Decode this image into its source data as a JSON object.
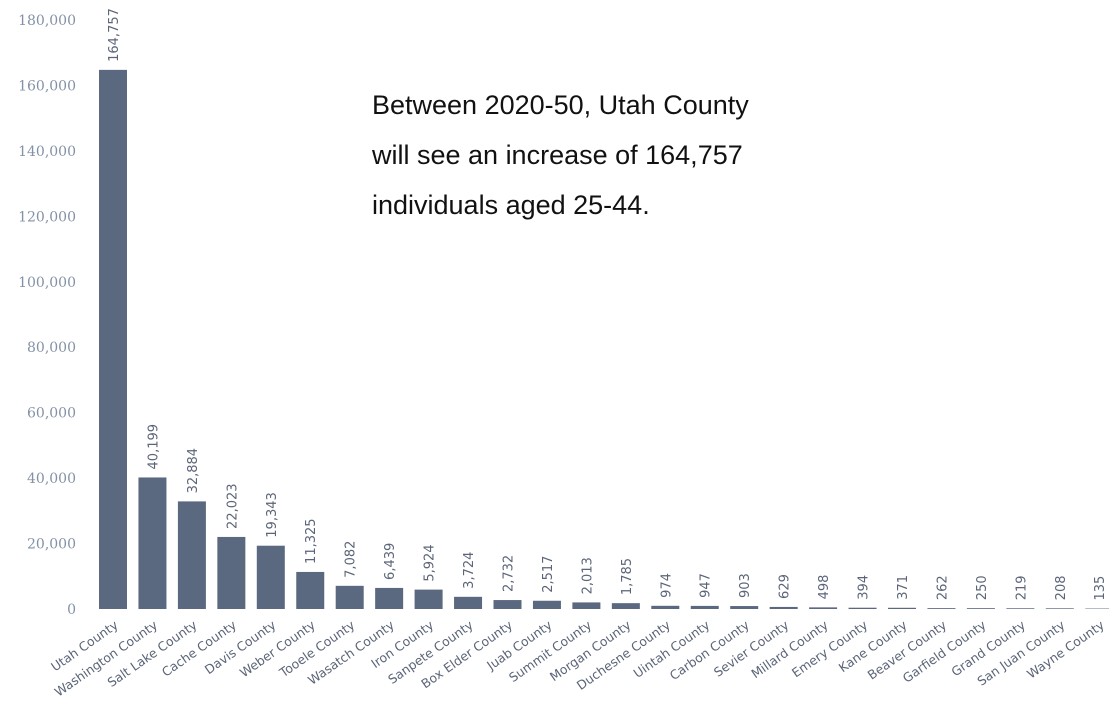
{
  "chart_data": {
    "type": "bar",
    "annotation": [
      "Between 2020-50, Utah County",
      "will see an increase of 164,757",
      "individuals aged 25-44."
    ],
    "categories": [
      "Utah County",
      "Washington County",
      "Salt Lake County",
      "Cache County",
      "Davis County",
      "Weber County",
      "Tooele County",
      "Wasatch County",
      "Iron County",
      "Sanpete County",
      "Box Elder County",
      "Juab County",
      "Summit County",
      "Morgan County",
      "Duchesne County",
      "Uintah County",
      "Carbon County",
      "Sevier County",
      "Millard County",
      "Emery County",
      "Kane County",
      "Beaver County",
      "Garfield County",
      "Grand County",
      "San Juan County",
      "Wayne County"
    ],
    "values": [
      164757,
      40199,
      32884,
      22023,
      19343,
      11325,
      7082,
      6439,
      5924,
      3724,
      2732,
      2517,
      2013,
      1785,
      974,
      947,
      903,
      629,
      498,
      394,
      371,
      262,
      250,
      219,
      208,
      135
    ],
    "value_labels": [
      "164,757",
      "40,199",
      "32,884",
      "22,023",
      "19,343",
      "11,325",
      "7,082",
      "6,439",
      "5,924",
      "3,724",
      "2,732",
      "2,517",
      "2,013",
      "1,785",
      "974",
      "947",
      "903",
      "629",
      "498",
      "394",
      "371",
      "262",
      "250",
      "219",
      "208",
      "135"
    ],
    "color": "#5a6880",
    "ylim": [
      0,
      180000
    ],
    "yticks": [
      0,
      {
        "value": 20000,
        "label": "20,000"
      },
      {
        "value": 40000,
        "label": "40,000"
      },
      {
        "value": 60000,
        "label": "60,000"
      },
      {
        "value": 80000,
        "label": "80,000"
      },
      {
        "value": 100000,
        "label": "100,000"
      },
      {
        "value": 120000,
        "label": "120,000"
      },
      {
        "value": 140000,
        "label": "140,000"
      },
      {
        "value": 160000,
        "label": "160,000"
      },
      {
        "value": 180000,
        "label": "180,000"
      }
    ]
  }
}
